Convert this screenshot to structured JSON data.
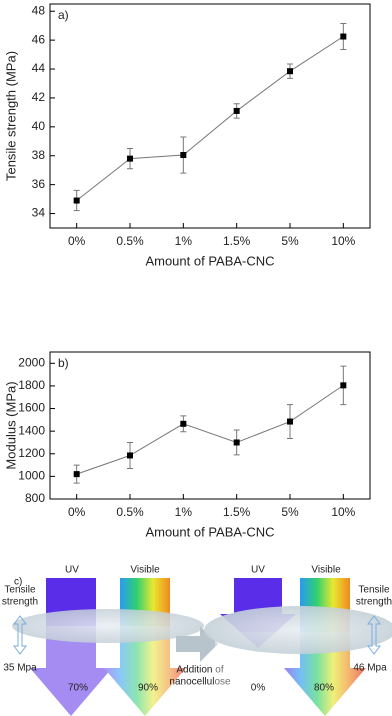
{
  "chart_data": [
    {
      "type": "line",
      "panel": "a)",
      "y_label": "Tensile strength (MPa)",
      "x_label": "Amount of PABA-CNC",
      "categories": [
        "0%",
        "0.5%",
        "1%",
        "1.5%",
        "5%",
        "10%"
      ],
      "series": [
        {
          "color": "#000000",
          "line_color": "#777777",
          "values": [
            34.9,
            37.8,
            38.05,
            41.1,
            43.85,
            46.25
          ],
          "errors": [
            0.7,
            0.7,
            1.25,
            0.5,
            0.5,
            0.9
          ]
        }
      ],
      "ylim": [
        33,
        48.5
      ],
      "yticks": [
        34,
        36,
        38,
        40,
        42,
        44,
        46,
        48
      ]
    },
    {
      "type": "line",
      "panel": "b)",
      "y_label": "Modulus (MPa)",
      "x_label": "Amount of PABA-CNC",
      "categories": [
        "0%",
        "0.5%",
        "1%",
        "1.5%",
        "5%",
        "10%"
      ],
      "series": [
        {
          "color": "#000000",
          "line_color": "#777777",
          "values": [
            1020,
            1185,
            1465,
            1300,
            1485,
            1805
          ],
          "errors": [
            80,
            115,
            70,
            110,
            150,
            170
          ]
        }
      ],
      "ylim": [
        800,
        2100
      ],
      "yticks": [
        800,
        1000,
        1200,
        1400,
        1600,
        1800,
        2000
      ]
    }
  ],
  "diagram": {
    "label": "c)",
    "left": {
      "uv": "UV",
      "visible": "Visible",
      "strength_label": [
        "Tensile",
        "strength"
      ],
      "strength": "35 Mpa",
      "uv_pass": "70%",
      "visible_pass": "90%"
    },
    "process": [
      "Addition of",
      "nanocellulose"
    ],
    "right": {
      "uv": "UV",
      "visible": "Visible",
      "strength_label": [
        "Tensile",
        "strength"
      ],
      "strength": "46 Mpa",
      "uv_pass": "0%",
      "visible_pass": "80%"
    }
  }
}
